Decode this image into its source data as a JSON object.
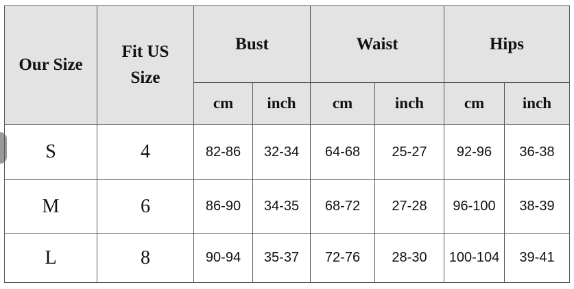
{
  "headers": {
    "our_size": "Our Size",
    "fit_us_size": "Fit US Size",
    "groups": [
      "Bust",
      "Waist",
      "Hips"
    ],
    "units": [
      "cm",
      "inch",
      "cm",
      "inch",
      "cm",
      "inch"
    ]
  },
  "rows": [
    {
      "size": "S",
      "us": "4",
      "values": [
        "82-86",
        "32-34",
        "64-68",
        "25-27",
        "92-96",
        "36-38"
      ]
    },
    {
      "size": "M",
      "us": "6",
      "values": [
        "86-90",
        "34-35",
        "68-72",
        "27-28",
        "96-100",
        "38-39"
      ]
    },
    {
      "size": "L",
      "us": "8",
      "values": [
        "90-94",
        "35-37",
        "72-76",
        "28-30",
        "100-104",
        "39-41"
      ]
    }
  ],
  "colors": {
    "header_bg": "#e3e3e3",
    "border": "#555555"
  }
}
